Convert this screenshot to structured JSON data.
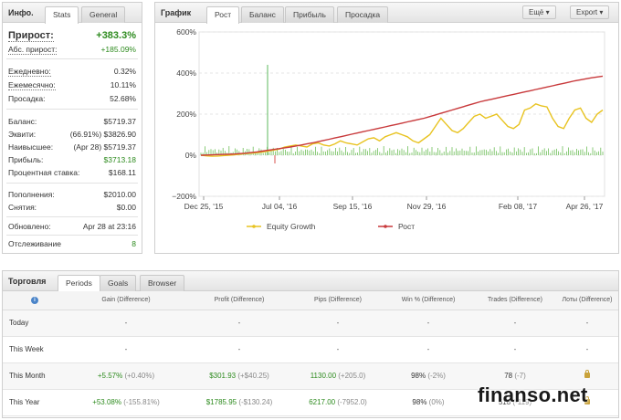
{
  "info": {
    "title": "Инфо.",
    "tabs": [
      "Stats",
      "General"
    ],
    "growth_label": "Прирост:",
    "growth_value": "+383.3%",
    "abs_label": "Абс. прирост:",
    "abs_value": "+185.09%",
    "daily_label": "Ежедневно:",
    "daily_value": "0.32%",
    "monthly_label": "Ежемесячно:",
    "monthly_value": "10.11%",
    "dd_label": "Просадка:",
    "dd_value": "52.68%",
    "balance_label": "Баланс:",
    "balance_value": "$5719.37",
    "equity_label": "Эквити:",
    "equity_value": "(66.91%) $3826.90",
    "highest_label": "Наивысшее:",
    "highest_value": "(Apr 28) $5719.37",
    "profit_label": "Прибыль:",
    "profit_value": "$3713.18",
    "interest_label": "Процентная ставка:",
    "interest_value": "$168.11",
    "deposits_label": "Пополнения:",
    "deposits_value": "$2010.00",
    "withdrawals_label": "Снятия:",
    "withdrawals_value": "$0.00",
    "updated_label": "Обновлено:",
    "updated_value": "Apr 28 at 23:16",
    "tracking_label": "Отслеживание",
    "tracking_value": "8"
  },
  "chart_panel": {
    "title": "График",
    "tabs": [
      "Рост",
      "Баланс",
      "Прибыль",
      "Просадка"
    ],
    "menu_label": "Ещё",
    "export_label": "Export",
    "chevron_icon": "chevron-down-icon"
  },
  "chart_data": {
    "type": "line",
    "y_ticks": [
      "600%",
      "400%",
      "200%",
      "0%",
      "−200%"
    ],
    "ylim": [
      -200,
      600
    ],
    "x_ticks": [
      "Dec 25, '15",
      "Jul 04, '16",
      "Sep 15, '16",
      "Nov 29, '16",
      "Feb 08, '17",
      "Apr 26, '17"
    ],
    "grid": true,
    "legend_position": "bottom",
    "series": [
      {
        "name": "Equity Growth",
        "color": "#e8c320",
        "values": [
          0,
          -3,
          -5,
          -4,
          -2,
          0,
          2,
          5,
          8,
          10,
          12,
          15,
          20,
          25,
          30,
          40,
          45,
          50,
          45,
          40,
          55,
          60,
          50,
          45,
          55,
          70,
          60,
          55,
          50,
          65,
          80,
          85,
          70,
          90,
          100,
          110,
          100,
          90,
          70,
          60,
          80,
          100,
          140,
          180,
          150,
          120,
          110,
          130,
          160,
          190,
          200,
          180,
          190,
          200,
          170,
          140,
          130,
          150,
          220,
          230,
          250,
          240,
          235,
          180,
          140,
          130,
          180,
          220,
          230,
          180,
          160,
          200,
          220
        ]
      },
      {
        "name": "Рост",
        "color": "#c8393b",
        "values": [
          0,
          1,
          2,
          3,
          4,
          5,
          6,
          8,
          10,
          13,
          16,
          20,
          24,
          28,
          32,
          36,
          40,
          45,
          50,
          55,
          60,
          66,
          72,
          78,
          84,
          90,
          96,
          102,
          108,
          114,
          120,
          126,
          132,
          138,
          144,
          150,
          156,
          162,
          168,
          174,
          180,
          188,
          196,
          204,
          212,
          220,
          228,
          236,
          244,
          252,
          260,
          266,
          272,
          278,
          284,
          290,
          296,
          302,
          308,
          314,
          320,
          326,
          332,
          338,
          344,
          350,
          356,
          362,
          367,
          372,
          377,
          381,
          385
        ]
      }
    ]
  },
  "trade": {
    "title": "Торговля",
    "tabs": [
      "Periods",
      "Goals",
      "Browser"
    ],
    "columns": [
      "Gain (Difference)",
      "Profit (Difference)",
      "Pips (Difference)",
      "Win % (Difference)",
      "Trades (Difference)",
      "Лоты (Difference)"
    ],
    "rows": [
      {
        "period": "Today",
        "gain": "-",
        "gain_diff": "",
        "profit": "-",
        "profit_diff": "",
        "pips": "-",
        "pips_diff": "",
        "win": "-",
        "win_diff": "",
        "trades": "-",
        "trades_diff": "",
        "lots": "-"
      },
      {
        "period": "This Week",
        "gain": "-",
        "gain_diff": "",
        "profit": "-",
        "profit_diff": "",
        "pips": "-",
        "pips_diff": "",
        "win": "-",
        "win_diff": "",
        "trades": "-",
        "trades_diff": "",
        "lots": "-"
      },
      {
        "period": "This Month",
        "gain": "+5.57%",
        "gain_diff": "(+0.40%)",
        "profit": "$301.93",
        "profit_diff": "(+$40.25)",
        "pips": "1130.00",
        "pips_diff": "(+205.0)",
        "win": "98%",
        "win_diff": "(-2%)",
        "trades": "78",
        "trades_diff": "(-7)",
        "lots": ""
      },
      {
        "period": "This Year",
        "gain": "+53.08%",
        "gain_diff": "(-155.81%)",
        "profit": "$1785.95",
        "profit_diff": "(-$130.24)",
        "pips": "6217.00",
        "pips_diff": "(-7952.0)",
        "win": "98%",
        "win_diff": "(0%)",
        "trades": "518",
        "trades_diff": "(-119)",
        "lots": ""
      }
    ]
  },
  "watermark": "finanso.net"
}
